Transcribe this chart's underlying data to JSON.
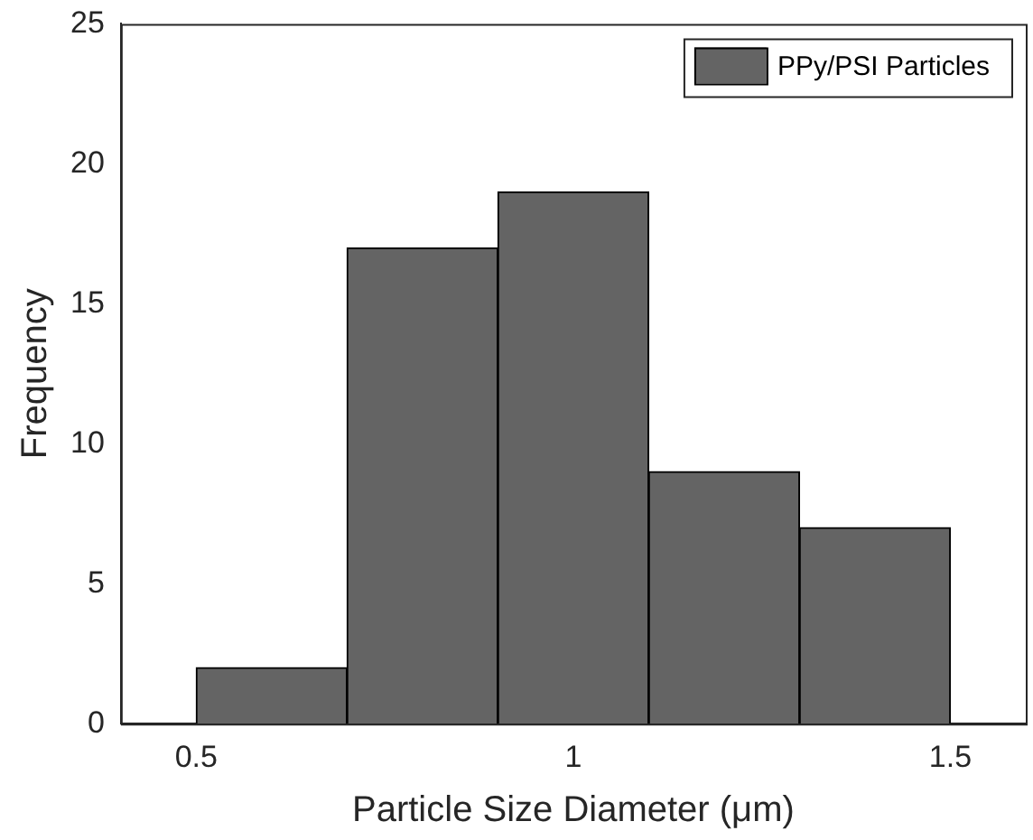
{
  "chart_data": {
    "type": "histogram",
    "xlabel": "Particle Size Diameter (μm)",
    "ylabel": "Frequency",
    "bins": [
      0.5,
      0.7,
      0.9,
      1.1,
      1.3,
      1.5
    ],
    "series": [
      {
        "name": "PPy/PSI Particles",
        "color": "#646464",
        "values": [
          2,
          17,
          19,
          9,
          7
        ]
      }
    ],
    "xlim": [
      0.4,
      1.6
    ],
    "xticks": [
      0.5,
      1,
      1.5
    ],
    "ylim": [
      0,
      25
    ],
    "yticks": [
      0,
      5,
      10,
      15,
      20,
      25
    ],
    "grid": false,
    "legend": "top right"
  }
}
